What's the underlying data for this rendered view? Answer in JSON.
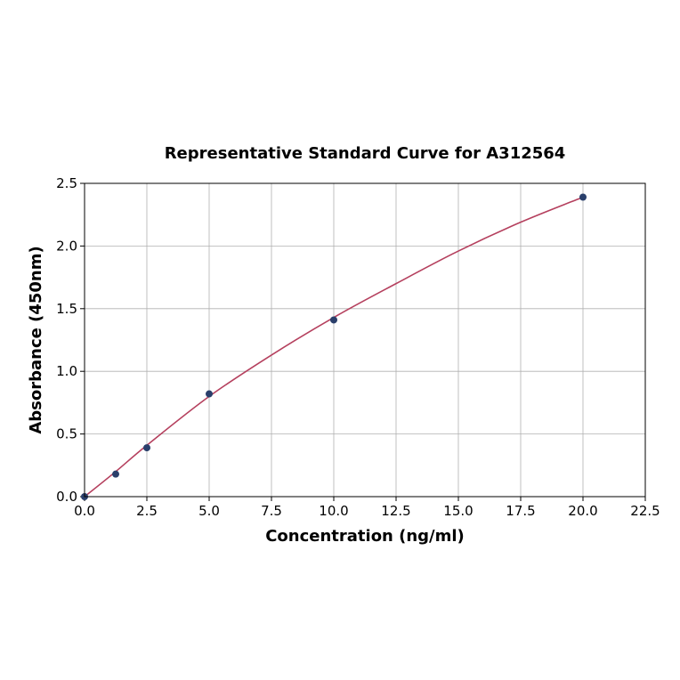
{
  "chart_data": {
    "type": "scatter",
    "title": "Representative Standard Curve for A312564",
    "xlabel": "Concentration (ng/ml)",
    "ylabel": "Absorbance (450nm)",
    "xlim": [
      0,
      22.5
    ],
    "ylim": [
      0,
      2.5
    ],
    "x_ticks": [
      "0.0",
      "2.5",
      "5.0",
      "7.5",
      "10.0",
      "12.5",
      "15.0",
      "17.5",
      "20.0",
      "22.5"
    ],
    "y_ticks": [
      "0.0",
      "0.5",
      "1.0",
      "1.5",
      "2.0",
      "2.5"
    ],
    "grid": true,
    "series": [
      {
        "kind": "points",
        "x": [
          0,
          1.25,
          2.5,
          5,
          10,
          20
        ],
        "y": [
          0.0,
          0.18,
          0.39,
          0.82,
          1.41,
          2.39
        ]
      },
      {
        "kind": "fit-curve",
        "x": [
          0,
          1.25,
          2.5,
          5,
          7.5,
          10,
          12.5,
          15,
          17.5,
          20
        ],
        "y": [
          0.0,
          0.2,
          0.41,
          0.8,
          1.13,
          1.43,
          1.7,
          1.96,
          2.19,
          2.39
        ]
      }
    ],
    "colors": {
      "points": "#2a3f6b",
      "curve": "#b5405e"
    }
  }
}
